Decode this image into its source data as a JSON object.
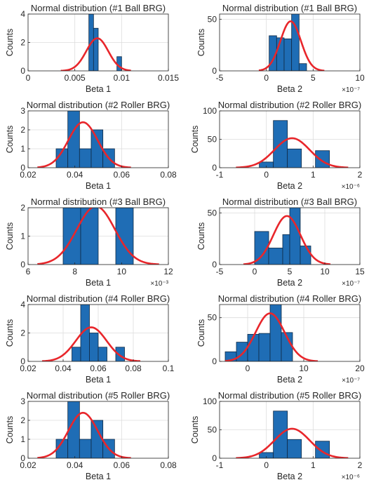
{
  "figure": {
    "colors": {
      "bar_fill": "#1F6DB5",
      "bar_edge": "#102a45",
      "fit_line": "#E8262B",
      "grid": "#dcdcdc",
      "axis": "#262626"
    }
  },
  "chart_data": [
    {
      "type": "bar",
      "title": "Normal distribution (#1 Ball BRG)",
      "xlabel": "Beta 1",
      "ylabel": "Counts",
      "xlim": [
        0,
        0.015
      ],
      "ylim": [
        0,
        4
      ],
      "xticks": [
        0,
        0.005,
        0.01,
        0.015
      ],
      "xtick_labels": [
        "0",
        "0.005",
        "0.01",
        "0.015"
      ],
      "yticks": [
        0,
        2,
        4
      ],
      "ytick_labels": [
        "0",
        "2",
        "4"
      ],
      "exponent": "",
      "bins": [
        [
          0.0065,
          0.007,
          4
        ],
        [
          0.007,
          0.0075,
          3
        ],
        [
          0.0075,
          0.008,
          0
        ],
        [
          0.008,
          0.0085,
          0
        ],
        [
          0.0085,
          0.009,
          0
        ],
        [
          0.009,
          0.0095,
          0
        ],
        [
          0.0095,
          0.01,
          1
        ]
      ],
      "fit": {
        "mean": 0.0074,
        "peak": 2.3,
        "range": [
          0.0035,
          0.011
        ]
      },
      "grid": true
    },
    {
      "type": "bar",
      "title": "Normal distribution (#1 Ball BRG)",
      "xlabel": "Beta 2",
      "ylabel": "Counts",
      "xlim": [
        -5,
        10
      ],
      "ylim": [
        0,
        55
      ],
      "xticks": [
        -5,
        0,
        5,
        10
      ],
      "xtick_labels": [
        "-5",
        "0",
        "5",
        "10"
      ],
      "yticks": [
        0,
        50
      ],
      "ytick_labels": [
        "0",
        "50"
      ],
      "exponent": "×10⁻⁷",
      "bins": [
        [
          0.3,
          1.1,
          34
        ],
        [
          1.1,
          1.9,
          32
        ],
        [
          1.9,
          2.7,
          31
        ],
        [
          2.7,
          3.5,
          62
        ],
        [
          3.5,
          4.3,
          7
        ]
      ],
      "fit": {
        "mean": 2.6,
        "peak": 48,
        "range": [
          -0.8,
          6.2
        ]
      },
      "grid": true
    },
    {
      "type": "bar",
      "title": "Normal distribution (#2 Roller BRG)",
      "xlabel": "Beta 1",
      "ylabel": "Counts",
      "xlim": [
        0.02,
        0.08
      ],
      "ylim": [
        0,
        3
      ],
      "xticks": [
        0.02,
        0.04,
        0.06,
        0.08
      ],
      "xtick_labels": [
        "0.02",
        "0.04",
        "0.06",
        "0.08"
      ],
      "yticks": [
        0,
        1,
        2,
        3
      ],
      "ytick_labels": [
        "0",
        "1",
        "2",
        "3"
      ],
      "exponent": "",
      "bins": [
        [
          0.032,
          0.037,
          1
        ],
        [
          0.037,
          0.042,
          3
        ],
        [
          0.042,
          0.047,
          1
        ],
        [
          0.047,
          0.052,
          2
        ],
        [
          0.052,
          0.057,
          1
        ]
      ],
      "fit": {
        "mean": 0.0435,
        "peak": 2.4,
        "range": [
          0.024,
          0.064
        ]
      },
      "grid": true
    },
    {
      "type": "bar",
      "title": "Normal distribution (#2 Roller BRG)",
      "xlabel": "Beta 2",
      "ylabel": "Counts",
      "xlim": [
        -1,
        2
      ],
      "ylim": [
        0,
        100
      ],
      "xticks": [
        -1,
        0,
        1,
        2
      ],
      "xtick_labels": [
        "-1",
        "0",
        "1",
        "2"
      ],
      "yticks": [
        0,
        50,
        100
      ],
      "ytick_labels": [
        "0",
        "50",
        "100"
      ],
      "exponent": "×10⁻⁶",
      "bins": [
        [
          -0.15,
          0.15,
          10
        ],
        [
          0.15,
          0.45,
          83
        ],
        [
          0.45,
          0.75,
          33
        ],
        [
          0.75,
          1.05,
          0
        ],
        [
          1.05,
          1.35,
          30
        ]
      ],
      "fit": {
        "mean": 0.55,
        "peak": 52,
        "range": [
          -0.65,
          1.75
        ]
      },
      "grid": true
    },
    {
      "type": "bar",
      "title": "Normal distribution (#3 Ball BRG)",
      "xlabel": "Beta 1",
      "ylabel": "Counts",
      "xlim": [
        6,
        12
      ],
      "ylim": [
        0,
        2
      ],
      "xticks": [
        6,
        8,
        10,
        12
      ],
      "xtick_labels": [
        "6",
        "8",
        "10",
        "12"
      ],
      "yticks": [
        0,
        1,
        2
      ],
      "ytick_labels": [
        "0",
        "1",
        "2"
      ],
      "exponent": "×10⁻³",
      "bins": [
        [
          7.5,
          8.25,
          2
        ],
        [
          8.25,
          9.0,
          2
        ],
        [
          9.0,
          9.75,
          0
        ],
        [
          9.75,
          10.5,
          2
        ]
      ],
      "fit": {
        "mean": 8.9,
        "peak": 2.05,
        "range": [
          6.4,
          11.6
        ]
      },
      "grid": true
    },
    {
      "type": "bar",
      "title": "Normal distribution (#3 Ball BRG)",
      "xlabel": "Beta 2",
      "ylabel": "Counts",
      "xlim": [
        -5,
        15
      ],
      "ylim": [
        0,
        55
      ],
      "xticks": [
        -5,
        0,
        5,
        10,
        15
      ],
      "xtick_labels": [
        "-5",
        "0",
        "5",
        "10",
        "15"
      ],
      "yticks": [
        0,
        50
      ],
      "ytick_labels": [
        "0",
        "50"
      ],
      "exponent": "×10⁻⁷",
      "bins": [
        [
          0,
          2,
          32
        ],
        [
          2,
          4,
          16
        ],
        [
          4,
          5,
          29
        ],
        [
          5,
          6.5,
          60
        ],
        [
          6.5,
          8,
          18
        ]
      ],
      "fit": {
        "mean": 4.6,
        "peak": 47,
        "range": [
          -1.6,
          10.8
        ]
      },
      "grid": true
    },
    {
      "type": "bar",
      "title": "Normal distribution (#4 Roller BRG)",
      "xlabel": "Beta 1",
      "ylabel": "Counts",
      "xlim": [
        0.02,
        0.1
      ],
      "ylim": [
        0,
        4
      ],
      "xticks": [
        0.02,
        0.04,
        0.06,
        0.08,
        0.1
      ],
      "xtick_labels": [
        "0.02",
        "0.04",
        "0.06",
        "0.08",
        "0.1"
      ],
      "yticks": [
        0,
        2,
        4
      ],
      "ytick_labels": [
        "0",
        "2",
        "4"
      ],
      "exponent": "",
      "bins": [
        [
          0.045,
          0.05,
          1
        ],
        [
          0.05,
          0.055,
          4
        ],
        [
          0.055,
          0.06,
          2
        ],
        [
          0.06,
          0.065,
          1
        ],
        [
          0.065,
          0.07,
          0
        ],
        [
          0.07,
          0.075,
          1
        ]
      ],
      "fit": {
        "mean": 0.056,
        "peak": 2.4,
        "range": [
          0.028,
          0.084
        ]
      },
      "grid": true
    },
    {
      "type": "bar",
      "title": "Normal distribution (#4 Roller BRG)",
      "xlabel": "Beta 2",
      "ylabel": "Counts",
      "xlim": [
        -5,
        20
      ],
      "ylim": [
        0,
        65
      ],
      "xticks": [
        0,
        10,
        20
      ],
      "xtick_labels": [
        "0",
        "10",
        "20"
      ],
      "yticks": [
        0,
        50
      ],
      "ytick_labels": [
        "0",
        "50"
      ],
      "exponent": "×10⁻⁷",
      "bins": [
        [
          -4,
          -2,
          11
        ],
        [
          -2,
          0,
          22
        ],
        [
          0,
          2,
          31
        ],
        [
          2,
          4,
          32
        ],
        [
          4,
          6,
          70
        ],
        [
          6,
          8,
          33
        ],
        [
          8,
          10,
          0
        ]
      ],
      "fit": {
        "mean": 4.0,
        "peak": 55,
        "range": [
          -4,
          12.5
        ]
      },
      "grid": true
    },
    {
      "type": "bar",
      "title": "Normal distribution (#5 Roller BRG)",
      "xlabel": "Beta 1",
      "ylabel": "Counts",
      "xlim": [
        0.02,
        0.08
      ],
      "ylim": [
        0,
        3
      ],
      "xticks": [
        0.02,
        0.04,
        0.06,
        0.08
      ],
      "xtick_labels": [
        "0.02",
        "0.04",
        "0.06",
        "0.08"
      ],
      "yticks": [
        0,
        1,
        2,
        3
      ],
      "ytick_labels": [
        "0",
        "1",
        "2",
        "3"
      ],
      "exponent": "",
      "bins": [
        [
          0.032,
          0.037,
          1
        ],
        [
          0.037,
          0.042,
          3
        ],
        [
          0.042,
          0.047,
          1
        ],
        [
          0.047,
          0.052,
          2
        ],
        [
          0.052,
          0.057,
          1
        ]
      ],
      "fit": {
        "mean": 0.0435,
        "peak": 2.4,
        "range": [
          0.024,
          0.064
        ]
      },
      "grid": true
    },
    {
      "type": "bar",
      "title": "Normal distribution (#5 Roller BRG)",
      "xlabel": "Beta 2",
      "ylabel": "Counts",
      "xlim": [
        -1,
        2
      ],
      "ylim": [
        0,
        100
      ],
      "xticks": [
        -1,
        0,
        1,
        2
      ],
      "xtick_labels": [
        "-1",
        "0",
        "1",
        "2"
      ],
      "yticks": [
        0,
        50,
        100
      ],
      "ytick_labels": [
        "0",
        "50",
        "100"
      ],
      "exponent": "×10⁻⁶",
      "bins": [
        [
          -0.15,
          0.15,
          10
        ],
        [
          0.15,
          0.45,
          83
        ],
        [
          0.45,
          0.75,
          33
        ],
        [
          0.75,
          1.05,
          0
        ],
        [
          1.05,
          1.35,
          30
        ]
      ],
      "fit": {
        "mean": 0.55,
        "peak": 52,
        "range": [
          -0.65,
          1.75
        ]
      },
      "grid": true
    }
  ]
}
